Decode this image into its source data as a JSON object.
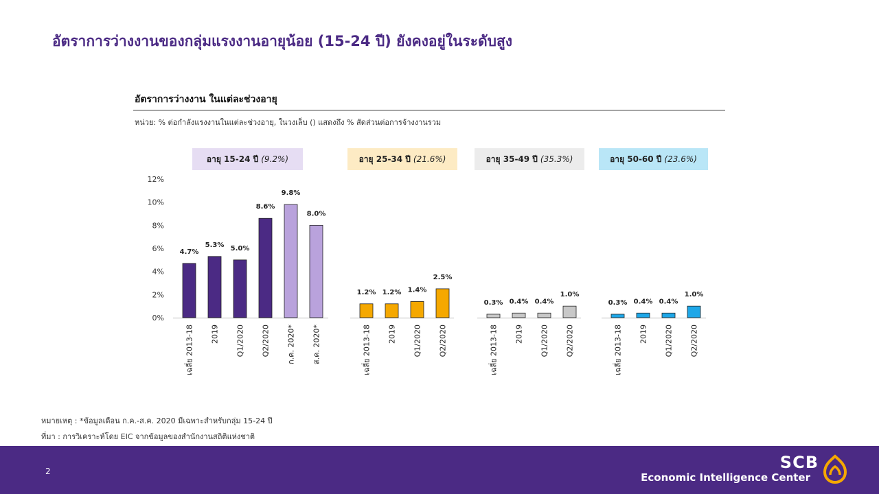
{
  "title": "อัตราการว่างงานของกลุ่มแรงงานอายุน้อย (15-24 ปี) ยังคงอยู่ในระดับสูง",
  "chart_heading": "อัตราการว่างงาน ในแต่ละช่วงอายุ",
  "unit_note": "หน่วย: % ต่อกำลังแรงงานในแต่ละช่วงอายุ, ในวงเล็บ () แสดงถึง % สัดส่วนต่อการจ้างงานรวม",
  "groups": [
    {
      "label": "อายุ 15-24 ปี",
      "share": "(9.2%)",
      "color": "#e6ddf3"
    },
    {
      "label": "อายุ 25-34 ปี",
      "share": "(21.6%)",
      "color": "#fdebc4"
    },
    {
      "label": "อายุ 35-49 ปี",
      "share": "(35.3%)",
      "color": "#ececec"
    },
    {
      "label": "อายุ 50-60 ปี",
      "share": "(23.6%)",
      "color": "#b9e6f7"
    }
  ],
  "chart_data": {
    "type": "bar",
    "ylim": [
      0,
      12
    ],
    "yticks": [
      "0%",
      "2%",
      "4%",
      "6%",
      "8%",
      "10%",
      "12%"
    ],
    "series": [
      {
        "name": "อายุ 15-24 ปี",
        "categories": [
          "เฉลี่ย 2013-18",
          "2019",
          "Q1/2020",
          "Q2/2020",
          "ก.ค. 2020*",
          "ส.ค. 2020*"
        ],
        "values": [
          4.7,
          5.3,
          5.0,
          8.6,
          9.8,
          8.0
        ],
        "labels": [
          "4.7%",
          "5.3%",
          "5.0%",
          "8.6%",
          "9.8%",
          "8.0%"
        ],
        "colors": [
          "#4b2a84",
          "#4b2a84",
          "#4b2a84",
          "#4b2a84",
          "#b9a2dc",
          "#b9a2dc"
        ]
      },
      {
        "name": "อายุ 25-34 ปี",
        "categories": [
          "เฉลี่ย 2013-18",
          "2019",
          "Q1/2020",
          "Q2/2020"
        ],
        "values": [
          1.2,
          1.2,
          1.4,
          2.5
        ],
        "labels": [
          "1.2%",
          "1.2%",
          "1.4%",
          "2.5%"
        ],
        "colors": [
          "#f5a800",
          "#f5a800",
          "#f5a800",
          "#f5a800"
        ]
      },
      {
        "name": "อายุ 35-49 ปี",
        "categories": [
          "เฉลี่ย 2013-18",
          "2019",
          "Q1/2020",
          "Q2/2020"
        ],
        "values": [
          0.3,
          0.4,
          0.4,
          1.0
        ],
        "labels": [
          "0.3%",
          "0.4%",
          "0.4%",
          "1.0%"
        ],
        "colors": [
          "#c8c8c8",
          "#c8c8c8",
          "#c8c8c8",
          "#c8c8c8"
        ]
      },
      {
        "name": "อายุ 50-60 ปี",
        "categories": [
          "เฉลี่ย 2013-18",
          "2019",
          "Q1/2020",
          "Q2/2020"
        ],
        "values": [
          0.3,
          0.4,
          0.4,
          1.0
        ],
        "labels": [
          "0.3%",
          "0.4%",
          "0.4%",
          "1.0%"
        ],
        "colors": [
          "#1ea7e8",
          "#1ea7e8",
          "#1ea7e8",
          "#1ea7e8"
        ]
      }
    ]
  },
  "footnotes": {
    "note": "หมายเหตุ : *ข้อมูลเดือน ก.ค.-ส.ค. 2020 มีเฉพาะสำหรับกลุ่ม 15-24 ปี",
    "source": "ที่มา : การวิเคราะห์โดย EIC จากข้อมูลของสำนักงานสถิติแห่งชาติ"
  },
  "footer": {
    "page_number": "2",
    "brand": "SCB",
    "brand_sub": "Economic Intelligence Center",
    "bg_color": "#4b2a84"
  }
}
